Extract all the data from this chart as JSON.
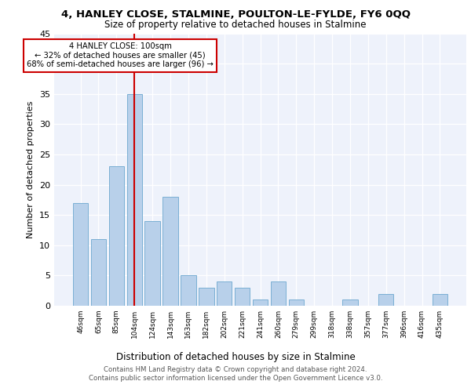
{
  "title1": "4, HANLEY CLOSE, STALMINE, POULTON-LE-FYLDE, FY6 0QQ",
  "title2": "Size of property relative to detached houses in Stalmine",
  "xlabel": "Distribution of detached houses by size in Stalmine",
  "ylabel": "Number of detached properties",
  "categories": [
    "46sqm",
    "65sqm",
    "85sqm",
    "104sqm",
    "124sqm",
    "143sqm",
    "163sqm",
    "182sqm",
    "202sqm",
    "221sqm",
    "241sqm",
    "260sqm",
    "279sqm",
    "299sqm",
    "318sqm",
    "338sqm",
    "357sqm",
    "377sqm",
    "396sqm",
    "416sqm",
    "435sqm"
  ],
  "values": [
    17,
    11,
    23,
    35,
    14,
    18,
    5,
    3,
    4,
    3,
    1,
    4,
    1,
    0,
    0,
    1,
    0,
    2,
    0,
    0,
    2
  ],
  "bar_color": "#b8d0ea",
  "bar_edge_color": "#7aafd4",
  "vline_x_index": 3,
  "vline_color": "#cc0000",
  "annotation_line1": "4 HANLEY CLOSE: 100sqm",
  "annotation_line2": "← 32% of detached houses are smaller (45)",
  "annotation_line3": "68% of semi-detached houses are larger (96) →",
  "annotation_box_color": "#ffffff",
  "annotation_box_edge_color": "#cc0000",
  "ylim": [
    0,
    45
  ],
  "yticks": [
    0,
    5,
    10,
    15,
    20,
    25,
    30,
    35,
    40,
    45
  ],
  "bg_color": "#eef2fb",
  "footer_line1": "Contains HM Land Registry data © Crown copyright and database right 2024.",
  "footer_line2": "Contains public sector information licensed under the Open Government Licence v3.0."
}
